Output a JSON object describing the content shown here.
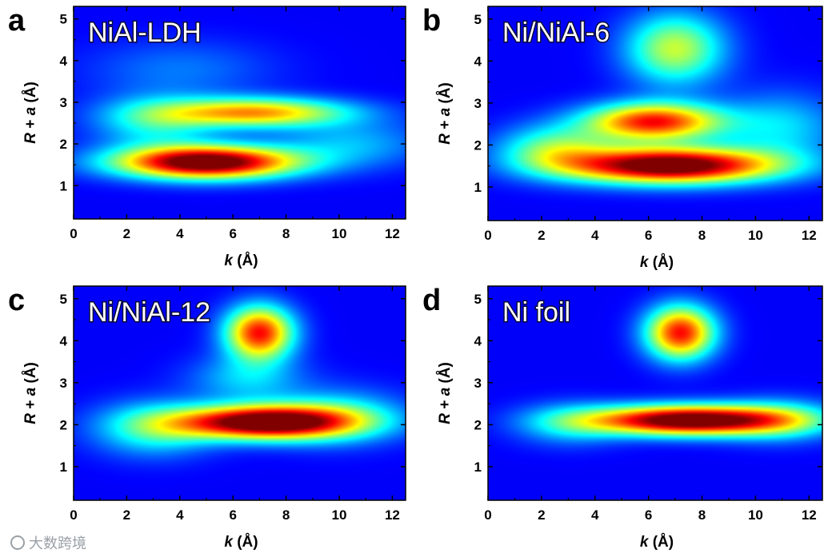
{
  "figure": {
    "watermark": "大数跨境"
  },
  "chart_data": [
    {
      "type": "heatmap",
      "panel_letter": "a",
      "title": "NiAl-LDH",
      "xlabel": "k (Å)",
      "ylabel": "R + a (Å)",
      "xlim": [
        0,
        12.5
      ],
      "ylim": [
        0.2,
        5.3
      ],
      "xticks": [
        "0",
        "2",
        "4",
        "6",
        "8",
        "10",
        "12"
      ],
      "yticks": [
        "1",
        "2",
        "3",
        "4",
        "5"
      ],
      "peaks": [
        {
          "k": 5.0,
          "r": 1.55,
          "amp": 1.0,
          "sk": 2.4,
          "sr": 0.28
        },
        {
          "k": 6.8,
          "r": 2.75,
          "amp": 0.6,
          "sk": 2.5,
          "sr": 0.25
        },
        {
          "k": 3.0,
          "r": 2.5,
          "amp": 0.25,
          "sk": 1.6,
          "sr": 0.45
        },
        {
          "k": 10.5,
          "r": 2.0,
          "amp": 0.18,
          "sk": 2.0,
          "sr": 0.4
        },
        {
          "k": 4.0,
          "r": 3.8,
          "amp": 0.12,
          "sk": 2.5,
          "sr": 0.5
        }
      ]
    },
    {
      "type": "heatmap",
      "panel_letter": "b",
      "title": "Ni/NiAl-6",
      "xlabel": "k (Å)",
      "ylabel": "R + a (Å)",
      "xlim": [
        0,
        12.5
      ],
      "ylim": [
        0.2,
        5.3
      ],
      "xticks": [
        "0",
        "2",
        "4",
        "6",
        "8",
        "10",
        "12"
      ],
      "yticks": [
        "1",
        "2",
        "3",
        "4",
        "5"
      ],
      "peaks": [
        {
          "k": 6.8,
          "r": 1.5,
          "amp": 1.0,
          "sk": 2.8,
          "sr": 0.3
        },
        {
          "k": 6.2,
          "r": 2.55,
          "amp": 0.75,
          "sk": 1.8,
          "sr": 0.32
        },
        {
          "k": 7.0,
          "r": 4.3,
          "amp": 0.45,
          "sk": 1.3,
          "sr": 0.6
        },
        {
          "k": 2.5,
          "r": 1.9,
          "amp": 0.35,
          "sk": 1.5,
          "sr": 0.4
        },
        {
          "k": 11.0,
          "r": 2.4,
          "amp": 0.22,
          "sk": 1.6,
          "sr": 0.6
        }
      ]
    },
    {
      "type": "heatmap",
      "panel_letter": "c",
      "title": "Ni/NiAl-12",
      "xlabel": "k (Å)",
      "ylabel": "R + a (Å)",
      "xlim": [
        0,
        12.5
      ],
      "ylim": [
        0.2,
        5.3
      ],
      "xticks": [
        "0",
        "2",
        "4",
        "6",
        "8",
        "10",
        "12"
      ],
      "yticks": [
        "1",
        "2",
        "3",
        "4",
        "5"
      ],
      "peaks": [
        {
          "k": 7.2,
          "r": 2.05,
          "amp": 1.0,
          "sk": 2.3,
          "sr": 0.28
        },
        {
          "k": 7.0,
          "r": 4.2,
          "amp": 0.75,
          "sk": 0.9,
          "sr": 0.45
        },
        {
          "k": 3.0,
          "r": 1.9,
          "amp": 0.3,
          "sk": 1.6,
          "sr": 0.45
        },
        {
          "k": 10.0,
          "r": 2.2,
          "amp": 0.25,
          "sk": 1.8,
          "sr": 0.45
        },
        {
          "k": 6.5,
          "r": 3.1,
          "amp": 0.2,
          "sk": 1.5,
          "sr": 0.4
        }
      ]
    },
    {
      "type": "heatmap",
      "panel_letter": "d",
      "title": "Ni foil",
      "xlabel": "k (Å)",
      "ylabel": "R + a (Å)",
      "xlim": [
        0,
        12.5
      ],
      "ylim": [
        0.2,
        5.3
      ],
      "xticks": [
        "0",
        "2",
        "4",
        "6",
        "8",
        "10",
        "12"
      ],
      "yticks": [
        "1",
        "2",
        "3",
        "4",
        "5"
      ],
      "peaks": [
        {
          "k": 7.5,
          "r": 2.1,
          "amp": 1.0,
          "sk": 2.6,
          "sr": 0.25
        },
        {
          "k": 7.2,
          "r": 4.2,
          "amp": 0.75,
          "sk": 0.9,
          "sr": 0.45
        },
        {
          "k": 3.0,
          "r": 2.0,
          "amp": 0.2,
          "sk": 1.4,
          "sr": 0.35
        },
        {
          "k": 11.0,
          "r": 2.1,
          "amp": 0.25,
          "sk": 1.5,
          "sr": 0.35
        }
      ]
    }
  ]
}
